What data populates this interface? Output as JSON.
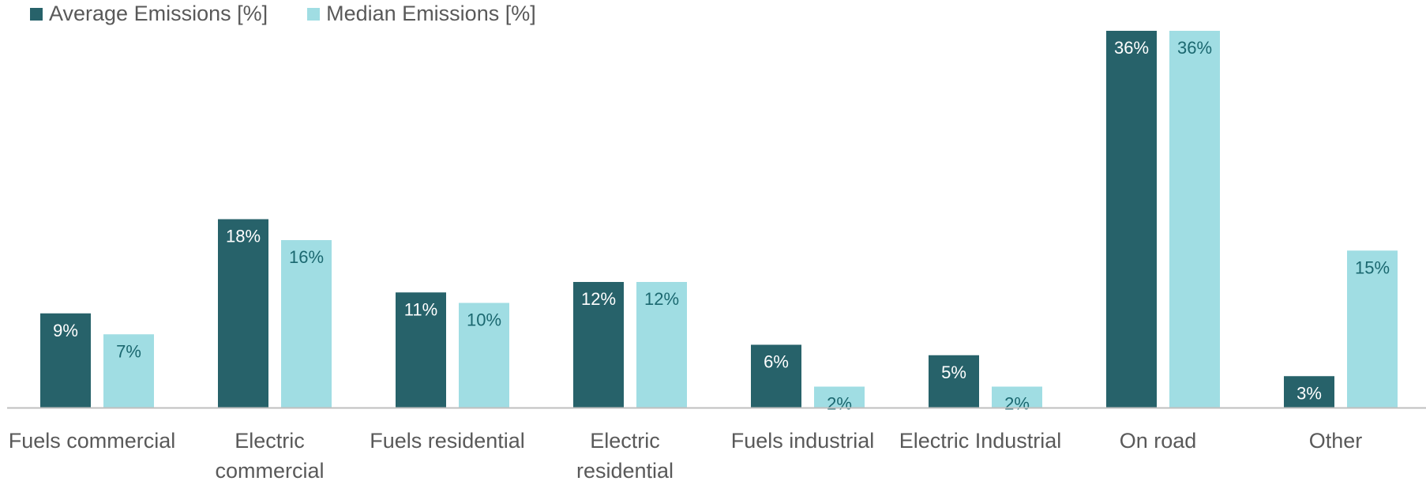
{
  "colors": {
    "average": "#27626A",
    "median": "#A0DDE3",
    "axis": "#BFBFBF",
    "label": "#595959",
    "value_on_dark": "#FFFFFF",
    "value_on_light": "#1B6870"
  },
  "chart_data": {
    "type": "bar",
    "categories": [
      [
        "Fuels commercial"
      ],
      [
        "Electric",
        "commercial"
      ],
      [
        "Fuels residential"
      ],
      [
        "Electric",
        "residential"
      ],
      [
        "Fuels industrial"
      ],
      [
        "Electric Industrial"
      ],
      [
        "On road"
      ],
      [
        "Other"
      ]
    ],
    "series": [
      {
        "name": "Average Emissions [%]",
        "values": [
          9,
          18,
          11,
          12,
          6,
          5,
          36,
          3
        ],
        "labels": [
          "9%",
          "18%",
          "11%",
          "12%",
          "6%",
          "5%",
          "36%",
          "3%"
        ]
      },
      {
        "name": "Median Emissions [%]",
        "values": [
          7,
          16,
          10,
          12,
          2,
          2,
          36,
          15
        ],
        "labels": [
          "7%",
          "16%",
          "10%",
          "12%",
          "2%",
          "2%",
          "36%",
          "15%"
        ]
      }
    ],
    "title": "",
    "xlabel": "",
    "ylabel": "",
    "ylim": [
      0,
      36
    ],
    "grid": false,
    "legend": "top-left"
  }
}
